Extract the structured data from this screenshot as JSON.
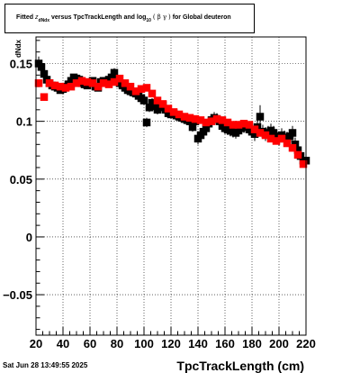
{
  "title": {
    "part1": "Fitted",
    "var": "z",
    "var_sub": "dNdx",
    "part2": "versus TpcTrackLength and log",
    "log_sub": "10",
    "paren_open": "(",
    "greek": "β γ",
    "paren_close": ")",
    "part3": "for Global deuteron"
  },
  "footer": {
    "datetime": "Sat Jun 28 13:49:55 2025"
  },
  "chart_data": {
    "type": "scatter",
    "xlabel": "TpcTrackLength (cm)",
    "ylabel": "dNdx",
    "xlim": [
      20,
      220
    ],
    "ylim": [
      -0.085,
      0.173
    ],
    "xticks": [
      20,
      40,
      60,
      80,
      100,
      120,
      140,
      160,
      180,
      200,
      220
    ],
    "xtick_labels": [
      "20",
      "40",
      "60",
      "80",
      "100",
      "120",
      "140",
      "160",
      "180",
      "200",
      "220"
    ],
    "yticks": [
      -0.05,
      0,
      0.05,
      0.1,
      0.15
    ],
    "ytick_labels": [
      "−0.05",
      "0",
      "0.05",
      "0.1",
      "0.15"
    ],
    "grid": true,
    "series": [
      {
        "color": "#000000",
        "x": [
          22,
          24,
          26,
          28,
          30,
          32,
          34,
          36,
          38,
          40,
          42,
          44,
          46,
          48,
          50,
          52,
          54,
          56,
          58,
          60,
          62,
          64,
          66,
          68,
          70,
          72,
          74,
          76,
          78,
          80,
          82,
          84,
          86,
          88,
          90,
          92,
          94,
          96,
          98,
          100,
          102,
          104,
          106,
          108,
          110,
          112,
          114,
          116,
          118,
          120,
          122,
          124,
          126,
          128,
          130,
          132,
          134,
          136,
          138,
          140,
          142,
          144,
          146,
          148,
          150,
          152,
          154,
          156,
          158,
          160,
          162,
          164,
          166,
          168,
          170,
          172,
          174,
          176,
          178,
          180,
          182,
          184,
          186,
          188,
          190,
          192,
          194,
          196,
          198,
          200,
          202,
          204,
          206,
          208,
          210,
          212,
          214,
          216,
          218,
          220
        ],
        "y": [
          0.15,
          0.147,
          0.141,
          0.136,
          0.133,
          0.131,
          0.13,
          0.129,
          0.127,
          0.128,
          0.13,
          0.132,
          0.135,
          0.138,
          0.137,
          0.136,
          0.133,
          0.132,
          0.131,
          0.133,
          0.135,
          0.13,
          0.129,
          0.134,
          0.135,
          0.134,
          0.136,
          0.138,
          0.142,
          0.136,
          0.133,
          0.131,
          0.129,
          0.127,
          0.126,
          0.125,
          0.124,
          0.122,
          0.12,
          0.118,
          0.099,
          0.112,
          0.116,
          0.113,
          0.11,
          0.112,
          0.114,
          0.11,
          0.107,
          0.106,
          0.107,
          0.105,
          0.104,
          0.103,
          0.102,
          0.101,
          0.1,
          0.095,
          0.1,
          0.085,
          0.088,
          0.091,
          0.094,
          0.098,
          0.101,
          0.103,
          0.102,
          0.1,
          0.096,
          0.094,
          0.093,
          0.092,
          0.091,
          0.09,
          0.092,
          0.094,
          0.095,
          0.096,
          0.093,
          0.091,
          0.089,
          0.095,
          0.104,
          0.091,
          0.089,
          0.09,
          0.092,
          0.09,
          0.087,
          0.085,
          0.088,
          0.086,
          0.085,
          0.087,
          0.09,
          0.08,
          0.075,
          0.07,
          0.066,
          0.066
        ],
        "err": [
          0.006,
          0.005,
          0.004,
          0.003,
          0.003,
          0.003,
          0.003,
          0.003,
          0.003,
          0.003,
          0.003,
          0.003,
          0.003,
          0.003,
          0.003,
          0.003,
          0.003,
          0.003,
          0.003,
          0.003,
          0.003,
          0.003,
          0.003,
          0.003,
          0.003,
          0.003,
          0.003,
          0.003,
          0.004,
          0.004,
          0.004,
          0.004,
          0.004,
          0.004,
          0.004,
          0.004,
          0.004,
          0.004,
          0.004,
          0.004,
          0.004,
          0.004,
          0.004,
          0.004,
          0.004,
          0.004,
          0.004,
          0.004,
          0.004,
          0.004,
          0.004,
          0.004,
          0.004,
          0.004,
          0.004,
          0.004,
          0.004,
          0.004,
          0.004,
          0.005,
          0.005,
          0.005,
          0.005,
          0.005,
          0.005,
          0.005,
          0.005,
          0.005,
          0.005,
          0.005,
          0.005,
          0.005,
          0.005,
          0.005,
          0.005,
          0.005,
          0.005,
          0.005,
          0.005,
          0.005,
          0.006,
          0.006,
          0.01,
          0.006,
          0.006,
          0.006,
          0.006,
          0.006,
          0.006,
          0.006,
          0.006,
          0.006,
          0.006,
          0.006,
          0.006,
          0.006,
          0.006,
          0.006,
          0.006,
          0.006
        ]
      },
      {
        "color": "#ff0000",
        "x": [
          22,
          26,
          30,
          34,
          38,
          42,
          46,
          50,
          54,
          58,
          62,
          66,
          70,
          74,
          78,
          82,
          86,
          90,
          94,
          98,
          102,
          106,
          110,
          114,
          118,
          122,
          126,
          130,
          134,
          138,
          142,
          146,
          150,
          154,
          158,
          162,
          166,
          170,
          174,
          178,
          182,
          186,
          190,
          194,
          198,
          202,
          206,
          210,
          214,
          218
        ],
        "y": [
          0.133,
          0.121,
          0.133,
          0.131,
          0.13,
          0.129,
          0.13,
          0.133,
          0.135,
          0.134,
          0.133,
          0.13,
          0.133,
          0.132,
          0.134,
          0.137,
          0.133,
          0.13,
          0.126,
          0.128,
          0.129,
          0.124,
          0.118,
          0.115,
          0.111,
          0.108,
          0.106,
          0.104,
          0.103,
          0.102,
          0.101,
          0.099,
          0.1,
          0.102,
          0.101,
          0.099,
          0.097,
          0.097,
          0.098,
          0.097,
          0.093,
          0.09,
          0.088,
          0.085,
          0.083,
          0.085,
          0.081,
          0.077,
          0.071,
          0.063
        ]
      }
    ]
  }
}
